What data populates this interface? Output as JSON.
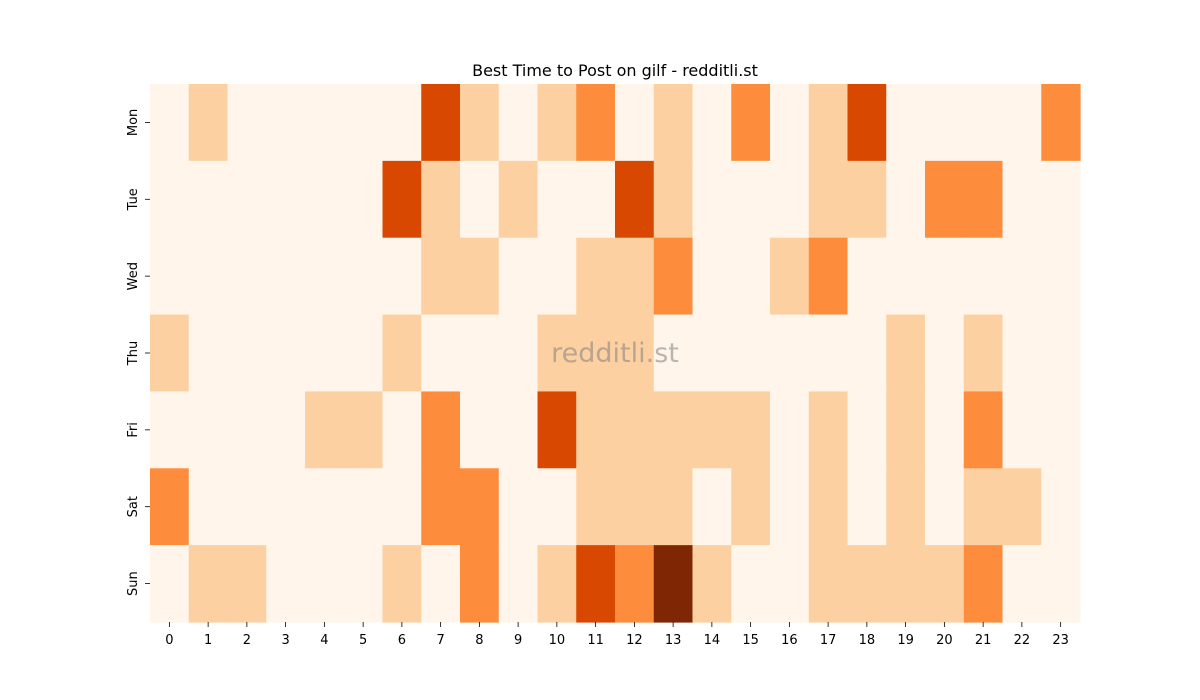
{
  "chart_data": {
    "type": "heatmap",
    "title": "Best Time to Post on gilf - redditli.st",
    "watermark": "redditli.st",
    "x_categories": [
      "0",
      "1",
      "2",
      "3",
      "4",
      "5",
      "6",
      "7",
      "8",
      "9",
      "10",
      "11",
      "12",
      "13",
      "14",
      "15",
      "16",
      "17",
      "18",
      "19",
      "20",
      "21",
      "22",
      "23"
    ],
    "y_categories": [
      "Mon",
      "Tue",
      "Wed",
      "Thu",
      "Fri",
      "Sat",
      "Sun"
    ],
    "values": [
      [
        0,
        1,
        0,
        0,
        0,
        0,
        0,
        3,
        1,
        0,
        1,
        2,
        0,
        1,
        0,
        2,
        0,
        1,
        3,
        0,
        0,
        0,
        0,
        2
      ],
      [
        0,
        0,
        0,
        0,
        0,
        0,
        3,
        1,
        0,
        1,
        0,
        0,
        3,
        1,
        0,
        0,
        0,
        1,
        1,
        0,
        2,
        2,
        0,
        0
      ],
      [
        0,
        0,
        0,
        0,
        0,
        0,
        0,
        1,
        1,
        0,
        0,
        1,
        1,
        2,
        0,
        0,
        1,
        2,
        0,
        0,
        0,
        0,
        0,
        0
      ],
      [
        1,
        0,
        0,
        0,
        0,
        0,
        1,
        0,
        0,
        0,
        1,
        1,
        1,
        0,
        0,
        0,
        0,
        0,
        0,
        1,
        0,
        1,
        0,
        0
      ],
      [
        0,
        0,
        0,
        0,
        1,
        1,
        0,
        2,
        0,
        0,
        3,
        1,
        1,
        1,
        1,
        1,
        0,
        1,
        0,
        1,
        0,
        2,
        0,
        0
      ],
      [
        2,
        0,
        0,
        0,
        0,
        0,
        0,
        2,
        2,
        0,
        0,
        1,
        1,
        1,
        0,
        1,
        0,
        1,
        0,
        1,
        0,
        1,
        1,
        0
      ],
      [
        0,
        1,
        1,
        0,
        0,
        0,
        1,
        0,
        2,
        0,
        1,
        3,
        2,
        4,
        1,
        0,
        0,
        1,
        1,
        1,
        1,
        2,
        0,
        0
      ]
    ],
    "colors": [
      "#fff5eb",
      "#fdd0a2",
      "#fd8d3c",
      "#d94801",
      "#7f2704"
    ],
    "grid": false,
    "legend": "none"
  }
}
